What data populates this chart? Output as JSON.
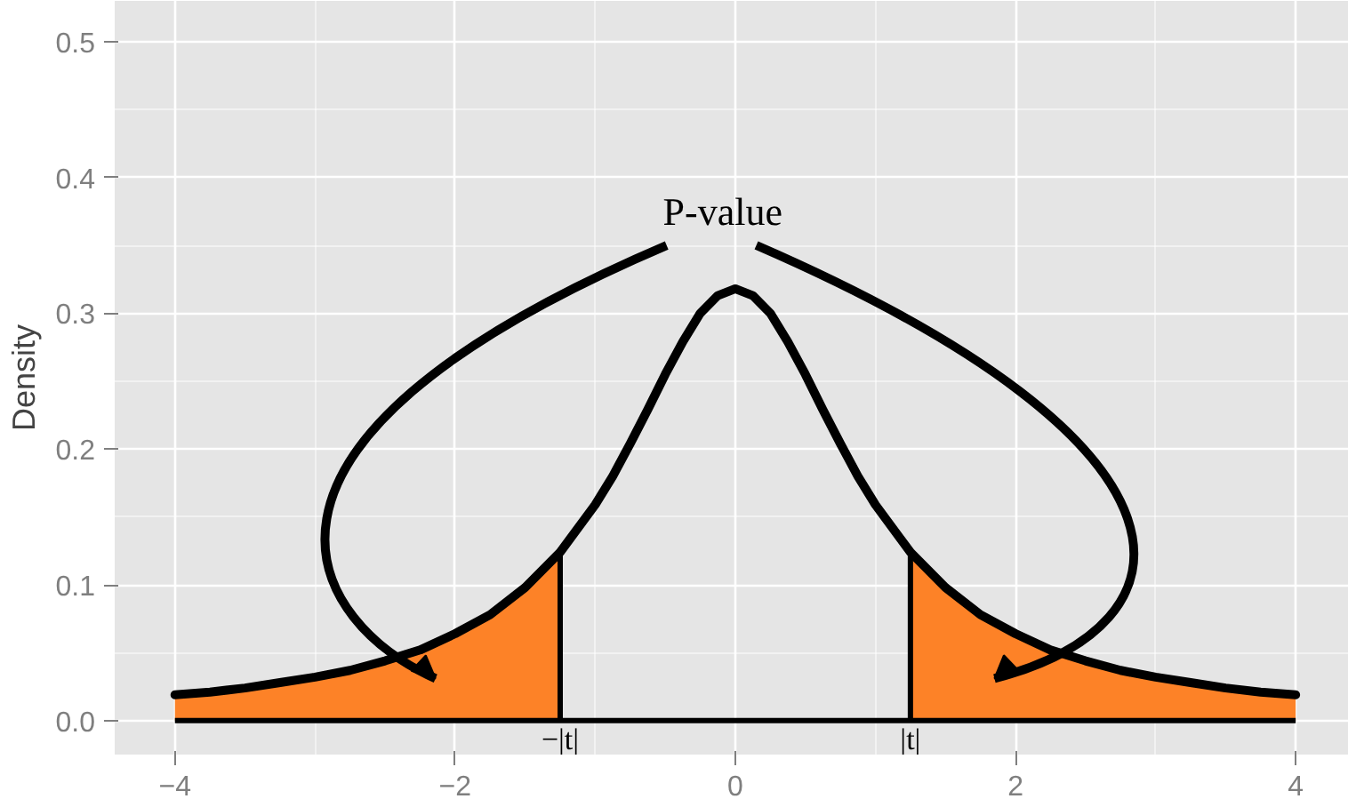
{
  "chart_data": {
    "type": "line",
    "ylabel": "Density",
    "xlim": [
      -4.43,
      4.38
    ],
    "ylim": [
      -0.025,
      0.53
    ],
    "xticks": [
      -4,
      -2,
      0,
      2,
      4
    ],
    "yticks": [
      {
        "value": 0,
        "label": "0.0"
      },
      {
        "value": 0.1,
        "label": "0.1"
      },
      {
        "value": 0.2,
        "label": "0.2"
      },
      {
        "value": 0.3,
        "label": "0.3"
      },
      {
        "value": 0.4,
        "label": "0.4"
      },
      {
        "value": 0.5,
        "label": "0.5"
      }
    ],
    "grid": true,
    "series": [
      {
        "type": "area",
        "color": "#fd8227",
        "x": [
          -4,
          -3.75,
          -3.5,
          -3.25,
          -3,
          -2.75,
          -2.5,
          -2.25,
          -2,
          -1.75,
          -1.5,
          -1.25
        ],
        "values": [
          0.019,
          0.021,
          0.024,
          0.028,
          0.032,
          0.037,
          0.044,
          0.052,
          0.064,
          0.078,
          0.098,
          0.124
        ]
      },
      {
        "type": "area",
        "color": "#fd8227",
        "x": [
          1.25,
          1.5,
          1.75,
          2,
          2.25,
          2.5,
          2.75,
          3,
          3.25,
          3.5,
          3.75,
          4
        ],
        "values": [
          0.124,
          0.098,
          0.078,
          0.064,
          0.052,
          0.044,
          0.037,
          0.032,
          0.028,
          0.024,
          0.021,
          0.019
        ]
      },
      {
        "color": "#000000",
        "x": [
          -4,
          -3.75,
          -3.5,
          -3.25,
          -3,
          -2.75,
          -2.5,
          -2.25,
          -2,
          -1.75,
          -1.5,
          -1.25,
          -1,
          -0.875,
          -0.75,
          -0.625,
          -0.5,
          -0.375,
          -0.25,
          -0.125,
          0,
          0.125,
          0.25,
          0.375,
          0.5,
          0.625,
          0.75,
          0.875,
          1,
          1.25,
          1.5,
          1.75,
          2,
          2.25,
          2.5,
          2.75,
          3,
          3.25,
          3.5,
          3.75,
          4
        ],
        "values": [
          0.019,
          0.021,
          0.024,
          0.028,
          0.032,
          0.037,
          0.044,
          0.052,
          0.064,
          0.078,
          0.098,
          0.124,
          0.159,
          0.18,
          0.204,
          0.229,
          0.255,
          0.279,
          0.3,
          0.313,
          0.318,
          0.313,
          0.3,
          0.279,
          0.255,
          0.229,
          0.204,
          0.18,
          0.159,
          0.124,
          0.098,
          0.078,
          0.064,
          0.052,
          0.044,
          0.037,
          0.032,
          0.028,
          0.024,
          0.021,
          0.019
        ]
      }
    ],
    "ref_lines": [
      {
        "axis": "y",
        "value": 0,
        "color": "#000000"
      }
    ],
    "annotations": [
      "P-value",
      {
        "text": "−|t|",
        "x": -1.25,
        "y": 0
      },
      {
        "text": "|t|",
        "x": 1.25,
        "y": 0
      }
    ]
  }
}
